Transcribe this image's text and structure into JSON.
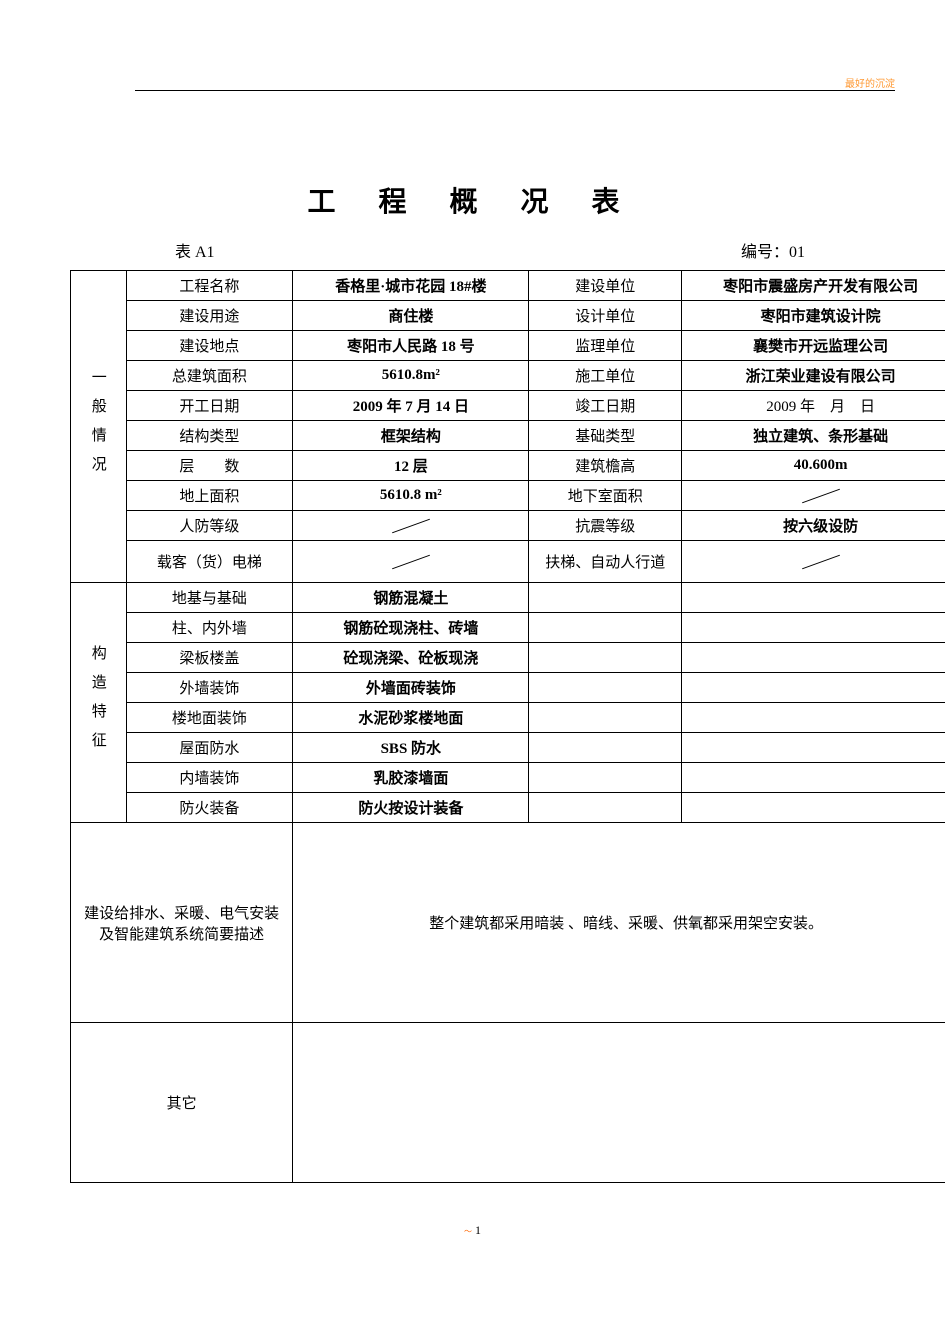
{
  "header_watermark": "最好的沉淀",
  "title": "工 程 概 况 表",
  "table_code": "表 A1",
  "doc_number_label": "编号：01",
  "section1_label": "一般情况",
  "section2_label": "构造特征",
  "rows_general": [
    {
      "l1": "工程名称",
      "v1": "香格里·城市花园 18#楼",
      "l2": "建设单位",
      "v2": "枣阳市震盛房产开发有限公司"
    },
    {
      "l1": "建设用途",
      "v1": "商住楼",
      "l2": "设计单位",
      "v2": "枣阳市建筑设计院"
    },
    {
      "l1": "建设地点",
      "v1": "枣阳市人民路 18 号",
      "l2": "监理单位",
      "v2": "襄樊市开远监理公司"
    },
    {
      "l1": "总建筑面积",
      "v1": "5610.8m²",
      "l2": "施工单位",
      "v2": "浙江荣业建设有限公司"
    },
    {
      "l1": "开工日期",
      "v1": "2009 年 7 月 14 日",
      "l2": "竣工日期",
      "v2": "2009 年　月　日",
      "v2_normal": true
    },
    {
      "l1": "结构类型",
      "v1": "框架结构",
      "l2": "基础类型",
      "v2": "独立建筑、条形基础"
    },
    {
      "l1": "层　　数",
      "v1": "12 层",
      "l2": "建筑檐高",
      "v2": "40.600m"
    },
    {
      "l1": "地上面积",
      "v1": "5610.8 m²",
      "l2": "地下室面积",
      "v2": "",
      "v2_diag": true
    },
    {
      "l1": "人防等级",
      "v1": "",
      "v1_diag": true,
      "l2": "抗震等级",
      "v2": "按六级设防"
    },
    {
      "l1": "载客（货）电梯",
      "v1": "",
      "v1_diag": true,
      "l2": "扶梯、自动人行道",
      "v2": "",
      "v2_diag": true,
      "tall": true
    }
  ],
  "rows_structure": [
    {
      "l1": "地基与基础",
      "v1": "钢筋混凝土"
    },
    {
      "l1": "柱、内外墙",
      "v1": "钢筋砼现浇柱、砖墙"
    },
    {
      "l1": "梁板楼盖",
      "v1": "砼现浇梁、砼板现浇"
    },
    {
      "l1": "外墙装饰",
      "v1": "外墙面砖装饰"
    },
    {
      "l1": "楼地面装饰",
      "v1": "水泥砂浆楼地面"
    },
    {
      "l1": "屋面防水",
      "v1": "SBS 防水"
    },
    {
      "l1": "内墙装饰",
      "v1": "乳胶漆墙面"
    },
    {
      "l1": "防火装备",
      "v1": "防火按设计装备"
    }
  ],
  "desc_label": "建设给排水、采暖、电气安装及智能建筑系统简要描述",
  "desc_content": "整个建筑都采用暗装 、暗线、采暖、供氧都采用架空安装。",
  "other_label": "其它",
  "page_number": "1"
}
